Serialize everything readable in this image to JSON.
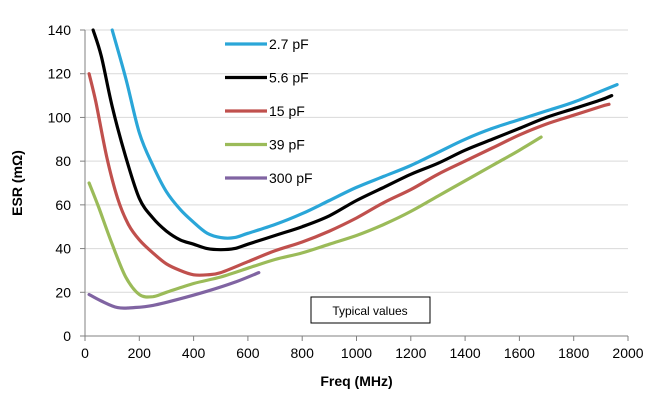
{
  "chart_data": {
    "type": "line",
    "xlabel": "Freq (MHz)",
    "ylabel": "ESR (mΩ)",
    "xlim": [
      0,
      2000
    ],
    "ylim": [
      0,
      140
    ],
    "xticks": [
      0,
      200,
      400,
      600,
      800,
      1000,
      1200,
      1400,
      1600,
      1800,
      2000
    ],
    "yticks": [
      0,
      20,
      40,
      60,
      80,
      100,
      120,
      140
    ],
    "grid": "horizontal",
    "legend_position": "top-center",
    "annotation": "Typical values",
    "series": [
      {
        "name": "2.7 pF",
        "color": "#2aa6d8",
        "points": [
          [
            100,
            140
          ],
          [
            150,
            118
          ],
          [
            200,
            93
          ],
          [
            250,
            78
          ],
          [
            300,
            66
          ],
          [
            350,
            58
          ],
          [
            400,
            52
          ],
          [
            450,
            47
          ],
          [
            500,
            45
          ],
          [
            550,
            45
          ],
          [
            600,
            47
          ],
          [
            700,
            51
          ],
          [
            800,
            56
          ],
          [
            900,
            62
          ],
          [
            1000,
            68
          ],
          [
            1100,
            73
          ],
          [
            1200,
            78
          ],
          [
            1300,
            84
          ],
          [
            1400,
            90
          ],
          [
            1500,
            95
          ],
          [
            1600,
            99
          ],
          [
            1700,
            103
          ],
          [
            1800,
            107
          ],
          [
            1900,
            112
          ],
          [
            1960,
            115
          ]
        ]
      },
      {
        "name": "5.6 pF",
        "color": "#000000",
        "points": [
          [
            30,
            140
          ],
          [
            60,
            128
          ],
          [
            100,
            105
          ],
          [
            150,
            82
          ],
          [
            200,
            63
          ],
          [
            250,
            54
          ],
          [
            300,
            48
          ],
          [
            350,
            44
          ],
          [
            400,
            42
          ],
          [
            450,
            40
          ],
          [
            500,
            39.5
          ],
          [
            550,
            40
          ],
          [
            600,
            42
          ],
          [
            700,
            46
          ],
          [
            800,
            50
          ],
          [
            900,
            55
          ],
          [
            1000,
            62
          ],
          [
            1100,
            68
          ],
          [
            1200,
            74
          ],
          [
            1300,
            79
          ],
          [
            1400,
            85
          ],
          [
            1500,
            90
          ],
          [
            1600,
            95
          ],
          [
            1700,
            100
          ],
          [
            1800,
            104
          ],
          [
            1900,
            108
          ],
          [
            1940,
            110
          ]
        ]
      },
      {
        "name": "15 pF",
        "color": "#c0504d",
        "points": [
          [
            15,
            120
          ],
          [
            40,
            107
          ],
          [
            80,
            82
          ],
          [
            120,
            63
          ],
          [
            160,
            51
          ],
          [
            200,
            44
          ],
          [
            250,
            38
          ],
          [
            300,
            33
          ],
          [
            350,
            30
          ],
          [
            400,
            28
          ],
          [
            450,
            28
          ],
          [
            500,
            29
          ],
          [
            600,
            34
          ],
          [
            700,
            39
          ],
          [
            800,
            43
          ],
          [
            900,
            48
          ],
          [
            1000,
            54
          ],
          [
            1100,
            61
          ],
          [
            1200,
            67
          ],
          [
            1300,
            74
          ],
          [
            1400,
            80
          ],
          [
            1500,
            86
          ],
          [
            1600,
            92
          ],
          [
            1700,
            97
          ],
          [
            1800,
            101
          ],
          [
            1900,
            105
          ],
          [
            1930,
            106
          ]
        ]
      },
      {
        "name": "39 pF",
        "color": "#9bbb59",
        "points": [
          [
            15,
            70
          ],
          [
            50,
            59
          ],
          [
            100,
            42
          ],
          [
            150,
            27
          ],
          [
            200,
            19
          ],
          [
            250,
            18
          ],
          [
            300,
            20
          ],
          [
            400,
            24
          ],
          [
            500,
            27
          ],
          [
            600,
            31
          ],
          [
            700,
            35
          ],
          [
            800,
            38
          ],
          [
            900,
            42
          ],
          [
            1000,
            46
          ],
          [
            1100,
            51
          ],
          [
            1200,
            57
          ],
          [
            1300,
            64
          ],
          [
            1400,
            71
          ],
          [
            1500,
            78
          ],
          [
            1600,
            85
          ],
          [
            1680,
            91
          ]
        ]
      },
      {
        "name": "300 pF",
        "color": "#8064a2",
        "points": [
          [
            15,
            19
          ],
          [
            60,
            16
          ],
          [
            120,
            13
          ],
          [
            180,
            13
          ],
          [
            250,
            14
          ],
          [
            350,
            17
          ],
          [
            450,
            20.5
          ],
          [
            550,
            24.5
          ],
          [
            640,
            29
          ]
        ]
      }
    ]
  }
}
